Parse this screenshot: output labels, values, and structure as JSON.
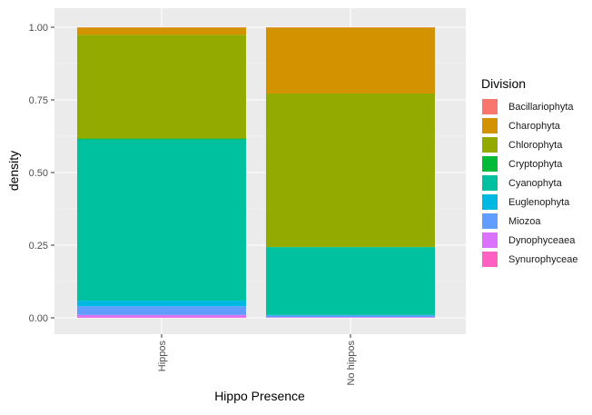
{
  "chart_data": {
    "type": "bar",
    "stacked": true,
    "xlabel": "Hippo Presence",
    "ylabel": "density",
    "categories": [
      "Hippos",
      "No hippos"
    ],
    "ylim": [
      0,
      1
    ],
    "yticks": [
      "0.00",
      "0.25",
      "0.50",
      "0.75",
      "1.00"
    ],
    "ytick_values": [
      0,
      0.25,
      0.5,
      0.75,
      1.0
    ],
    "legend_title": "Division",
    "legend_position": "right",
    "grid": true,
    "series": [
      {
        "name": "Bacillariophyta",
        "color": "#F8766D",
        "values": [
          0.001,
          0.001
        ]
      },
      {
        "name": "Charophyta",
        "color": "#D39200",
        "values": [
          0.025,
          0.227
        ]
      },
      {
        "name": "Chlorophyta",
        "color": "#93AA00",
        "values": [
          0.357,
          0.528
        ]
      },
      {
        "name": "Cryptophyta",
        "color": "#00BA38",
        "values": [
          0.003,
          0.001
        ]
      },
      {
        "name": "Cyanophyta",
        "color": "#00C19F",
        "values": [
          0.555,
          0.233
        ]
      },
      {
        "name": "Euglenophyta",
        "color": "#00B9E3",
        "values": [
          0.019,
          0.002
        ]
      },
      {
        "name": "Miozoa",
        "color": "#619CFF",
        "values": [
          0.03,
          0.006
        ]
      },
      {
        "name": "Dynophyceaea",
        "color": "#DB72FB",
        "values": [
          0.008,
          0.001
        ]
      },
      {
        "name": "Synurophyceae",
        "color": "#FF61C3",
        "values": [
          0.002,
          0.001
        ]
      }
    ]
  }
}
